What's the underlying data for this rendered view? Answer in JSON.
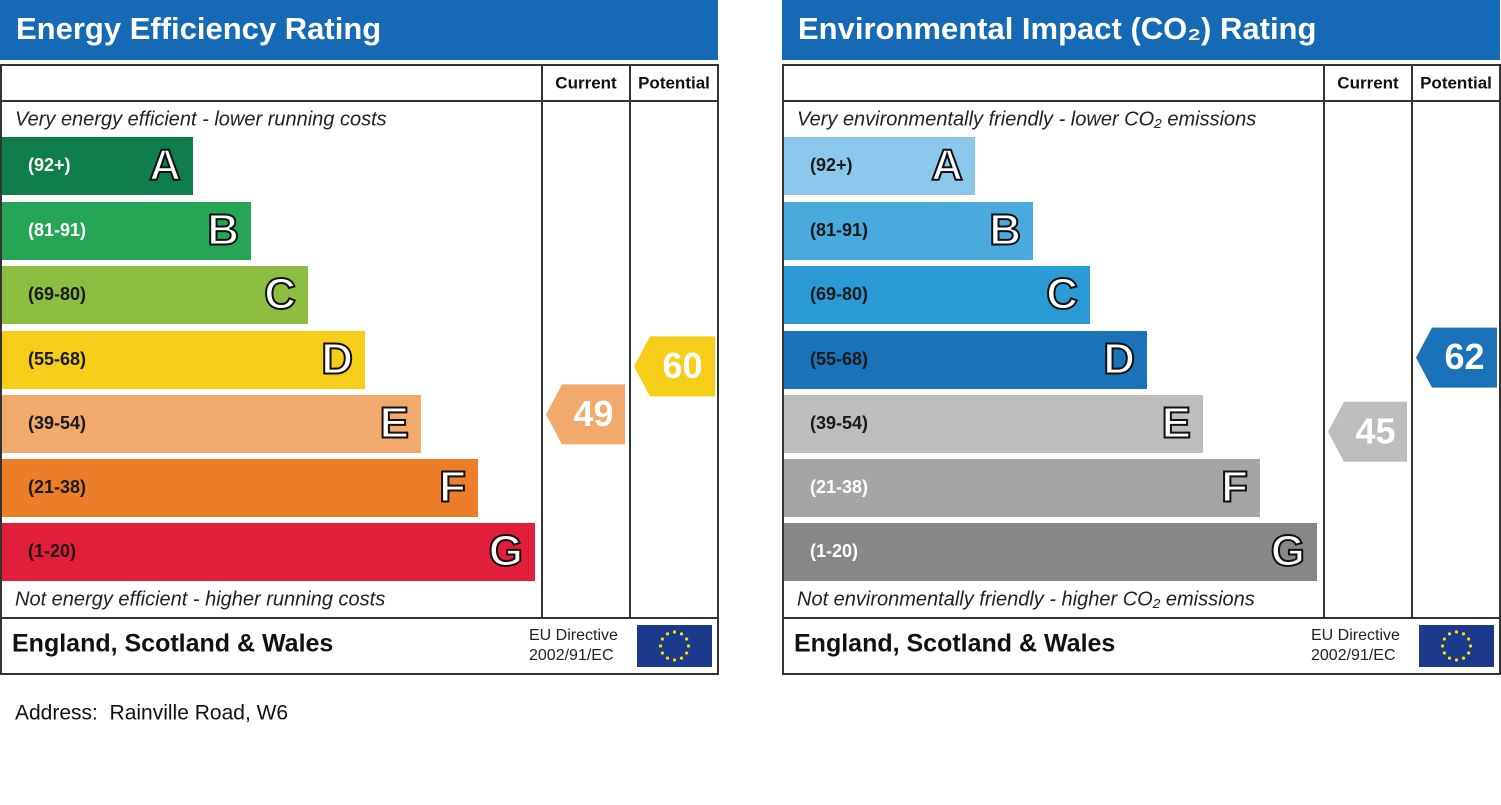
{
  "panels": [
    {
      "title": "Energy Efficiency Rating",
      "columns": [
        "Current",
        "Potential"
      ],
      "top_note": "Very energy efficient - lower running costs",
      "bottom_note": "Not energy efficient - higher running costs",
      "bands": [
        {
          "range": "(92+)",
          "letter": "A",
          "color": "#0f7d4c",
          "text_color": "#ffffff"
        },
        {
          "range": "(81-91)",
          "letter": "B",
          "color": "#27a557",
          "text_color": "#ffffff"
        },
        {
          "range": "(69-80)",
          "letter": "C",
          "color": "#8dbd41",
          "text_color": "#1a1a1a"
        },
        {
          "range": "(55-68)",
          "letter": "D",
          "color": "#f6cd18",
          "text_color": "#1a1a1a"
        },
        {
          "range": "(39-54)",
          "letter": "E",
          "color": "#f2a96c",
          "text_color": "#1a1a1a"
        },
        {
          "range": "(21-38)",
          "letter": "F",
          "color": "#ec7e29",
          "text_color": "#1a1a1a"
        },
        {
          "range": "(1-20)",
          "letter": "G",
          "color": "#e21f3b",
          "text_color": "#1a1a1a"
        }
      ],
      "current": {
        "value": 49,
        "color": "#f2a96c"
      },
      "potential": {
        "value": 60,
        "color": "#f6cd18"
      },
      "region": "England, Scotland & Wales",
      "directive": [
        "EU Directive",
        "2002/91/EC"
      ]
    },
    {
      "title": "Environmental Impact (CO₂) Rating",
      "columns": [
        "Current",
        "Potential"
      ],
      "top_note": "Very environmentally friendly - lower CO₂ emissions",
      "bottom_note": "Not environmentally friendly - higher CO₂ emissions",
      "bands": [
        {
          "range": "(92+)",
          "letter": "A",
          "color": "#8cc8ec",
          "text_color": "#1a1a1a"
        },
        {
          "range": "(81-91)",
          "letter": "B",
          "color": "#4aa9dd",
          "text_color": "#1a1a1a"
        },
        {
          "range": "(69-80)",
          "letter": "C",
          "color": "#2a9bd4",
          "text_color": "#1a1a1a"
        },
        {
          "range": "(55-68)",
          "letter": "D",
          "color": "#1a73b8",
          "text_color": "#1a1a1a"
        },
        {
          "range": "(39-54)",
          "letter": "E",
          "color": "#bdbdbb",
          "text_color": "#1a1a1a"
        },
        {
          "range": "(21-38)",
          "letter": "F",
          "color": "#a5a5a3",
          "text_color": "#ffffff"
        },
        {
          "range": "(1-20)",
          "letter": "G",
          "color": "#878786",
          "text_color": "#ffffff"
        }
      ],
      "current": {
        "value": 45,
        "color": "#bdbdbb"
      },
      "potential": {
        "value": 62,
        "color": "#1a73b8"
      },
      "region": "England, Scotland & Wales",
      "directive": [
        "EU Directive",
        "2002/91/EC"
      ]
    }
  ],
  "address": "Address:  Rainville Road, W6"
}
